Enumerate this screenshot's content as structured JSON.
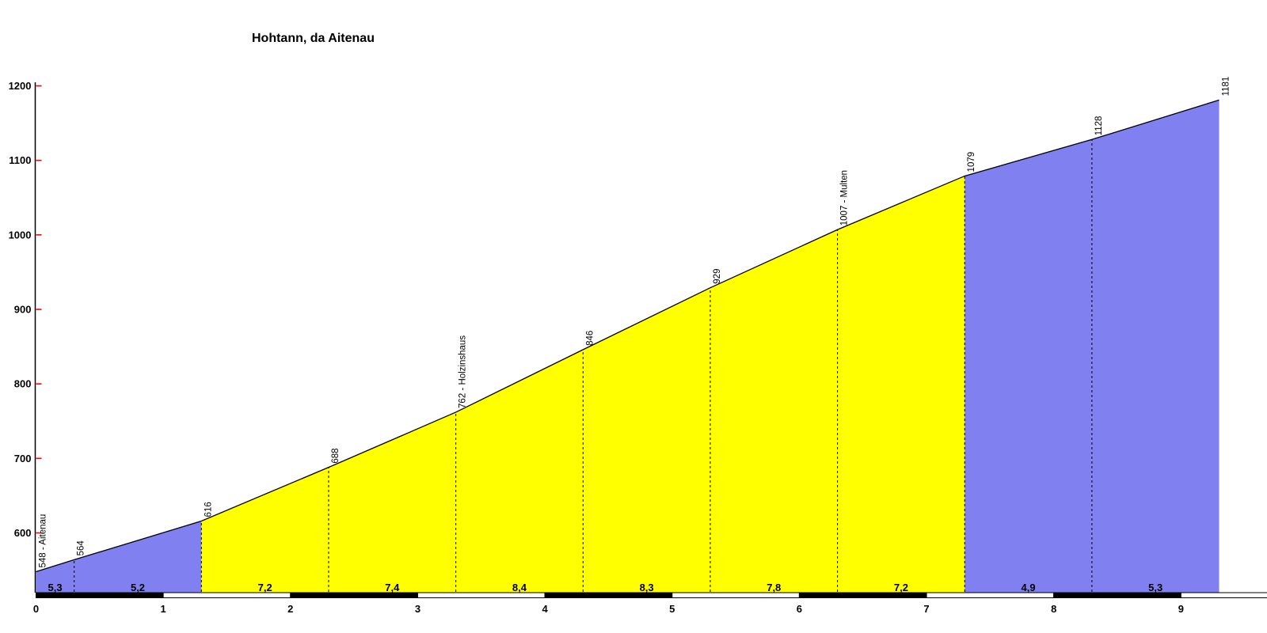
{
  "title": "Hohtann, da Aitenau",
  "colors": {
    "gentle_gradient_fill": "#8080f0",
    "steep_gradient_fill": "#ffff00",
    "axis_line": "#000000",
    "y_tick_mark": "#ff0000",
    "text": "#000000",
    "km_bar_even": "#000000",
    "km_bar_odd": "#ffffff",
    "background": "#ffffff"
  },
  "chart_data": {
    "type": "area",
    "title": "Hohtann, da Aitenau",
    "xlim": [
      0,
      9.3
    ],
    "ylim": [
      548,
      1200
    ],
    "grid": "off",
    "legend": "none",
    "y_ticks": [
      600,
      700,
      800,
      900,
      1000,
      1100,
      1200
    ],
    "x_ticks": [
      0,
      1,
      2,
      3,
      4,
      5,
      6,
      7,
      8,
      9
    ],
    "points": [
      {
        "km": 0.0,
        "elevation": 548,
        "label": "548 - Aitenau"
      },
      {
        "km": 0.3,
        "elevation": 564,
        "label": "564"
      },
      {
        "km": 1.3,
        "elevation": 616,
        "label": "616"
      },
      {
        "km": 2.3,
        "elevation": 688,
        "label": "688"
      },
      {
        "km": 3.3,
        "elevation": 762,
        "label": "762 - Holzinshaus"
      },
      {
        "km": 4.3,
        "elevation": 846,
        "label": "846"
      },
      {
        "km": 5.3,
        "elevation": 929,
        "label": "929"
      },
      {
        "km": 6.3,
        "elevation": 1007,
        "label": "1007 - Multen"
      },
      {
        "km": 7.3,
        "elevation": 1079,
        "label": "1079"
      },
      {
        "km": 8.3,
        "elevation": 1128,
        "label": "1128"
      },
      {
        "km": 9.3,
        "elevation": 1181,
        "label": "1181"
      }
    ],
    "segments": [
      {
        "from_km": 0.0,
        "to_km": 0.3,
        "gradient_percent": "5,3",
        "color": "#8080f0"
      },
      {
        "from_km": 0.3,
        "to_km": 1.3,
        "gradient_percent": "5,2",
        "color": "#8080f0"
      },
      {
        "from_km": 1.3,
        "to_km": 2.3,
        "gradient_percent": "7,2",
        "color": "#ffff00"
      },
      {
        "from_km": 2.3,
        "to_km": 3.3,
        "gradient_percent": "7,4",
        "color": "#ffff00"
      },
      {
        "from_km": 3.3,
        "to_km": 4.3,
        "gradient_percent": "8,4",
        "color": "#ffff00"
      },
      {
        "from_km": 4.3,
        "to_km": 5.3,
        "gradient_percent": "8,3",
        "color": "#ffff00"
      },
      {
        "from_km": 5.3,
        "to_km": 6.3,
        "gradient_percent": "7,8",
        "color": "#ffff00"
      },
      {
        "from_km": 6.3,
        "to_km": 7.3,
        "gradient_percent": "7,2",
        "color": "#ffff00"
      },
      {
        "from_km": 7.3,
        "to_km": 8.3,
        "gradient_percent": "4,9",
        "color": "#8080f0"
      },
      {
        "from_km": 8.3,
        "to_km": 9.3,
        "gradient_percent": "5,3",
        "color": "#8080f0"
      }
    ],
    "km_bar": {
      "segments_start_km": [
        0,
        1,
        2,
        3,
        4,
        5,
        6,
        7,
        8,
        9
      ],
      "even_color": "#000000",
      "odd_color": "#ffffff"
    }
  }
}
